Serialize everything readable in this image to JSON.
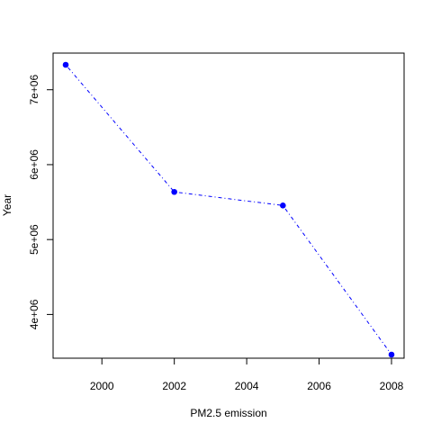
{
  "chart_data": {
    "type": "line",
    "xlabel": "PM2.5 emission",
    "ylabel": "Year",
    "x": [
      1999,
      2002,
      2005,
      2008
    ],
    "y": [
      7332967,
      5635780,
      5454703,
      3464206
    ],
    "xlim": [
      1999,
      2008
    ],
    "ylim": [
      3464206,
      7332967
    ],
    "x_ticks": [
      2000,
      2002,
      2004,
      2006,
      2008
    ],
    "x_tick_labels": [
      "2000",
      "2002",
      "2004",
      "2006",
      "2008"
    ],
    "y_ticks": [
      4000000,
      5000000,
      6000000,
      7000000
    ],
    "y_tick_labels": [
      "4e+06",
      "5e+06",
      "6e+06",
      "7e+06"
    ],
    "line_style": "dot-dash",
    "marker": "filled-circle",
    "color": "#0000ff",
    "grid": false,
    "frame": true
  }
}
